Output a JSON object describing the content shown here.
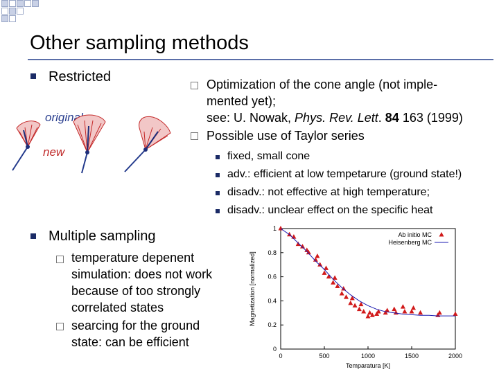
{
  "slide": {
    "title": "Other sampling methods",
    "restricted": {
      "label": "Restricted",
      "figure_labels": {
        "original": "original",
        "new": "new"
      },
      "items": [
        {
          "line1": "Optimization of the cone angle (not imple-",
          "line2": "mented yet);",
          "ref_prefix": "see: U. Nowak, ",
          "ref_journal": "Phys. Rev. Lett",
          "ref_dot": ". ",
          "ref_volume": "84",
          "ref_rest": " 163 (1999)"
        },
        {
          "text": "Possible use of Taylor series"
        }
      ],
      "subitems": [
        "fixed, small cone",
        "adv.: efficient at low tempetarure (ground state!)",
        "disadv.: not effective at high temperature;",
        "disadv.: unclear effect on the specific heat"
      ]
    },
    "multiple": {
      "label": "Multiple sampling",
      "items": [
        {
          "lines": [
            "temperature depenent",
            "simulation: does not work",
            "because of too strongly",
            "correlated states"
          ]
        },
        {
          "lines": [
            "searcing for the ground",
            "state: can be efficient"
          ]
        }
      ]
    }
  },
  "chart_data": {
    "type": "scatter",
    "xlabel": "Temparatura [K]",
    "ylabel": "Magnetization [normalized]",
    "xlim": [
      0,
      2000
    ],
    "ylim": [
      0,
      1
    ],
    "xticks": [
      "0",
      "500",
      "1000",
      "1500",
      "2000"
    ],
    "yticks": [
      "0",
      "0.2",
      "0.4",
      "0.6",
      "0.8",
      "1"
    ],
    "legend_position": "top-right",
    "series": [
      {
        "name": "Ab initio MC",
        "kind": "markers",
        "color": "#d11a1a",
        "x": [
          0,
          100,
          150,
          200,
          250,
          300,
          320,
          400,
          420,
          450,
          500,
          520,
          550,
          600,
          620,
          650,
          700,
          720,
          750,
          800,
          820,
          850,
          900,
          920,
          950,
          1000,
          1020,
          1050,
          1100,
          1120,
          1200,
          1220,
          1300,
          1320,
          1400,
          1420,
          1500,
          1520,
          1600,
          1800,
          1820,
          2000
        ],
        "y": [
          1.0,
          0.95,
          0.93,
          0.87,
          0.85,
          0.82,
          0.8,
          0.74,
          0.77,
          0.7,
          0.63,
          0.67,
          0.6,
          0.55,
          0.59,
          0.52,
          0.46,
          0.5,
          0.43,
          0.38,
          0.42,
          0.36,
          0.33,
          0.37,
          0.31,
          0.27,
          0.3,
          0.28,
          0.29,
          0.31,
          0.3,
          0.32,
          0.33,
          0.3,
          0.35,
          0.31,
          0.31,
          0.34,
          0.3,
          0.28,
          0.3,
          0.29
        ]
      },
      {
        "name": "Heisenberg MC",
        "kind": "line",
        "color": "#1a1ab0",
        "x": [
          0,
          100,
          200,
          300,
          400,
          500,
          600,
          700,
          800,
          900,
          1000,
          1100,
          1200,
          1300,
          1400,
          1500,
          1600,
          1700,
          1800,
          1900,
          2000
        ],
        "y": [
          1.0,
          0.95,
          0.88,
          0.81,
          0.73,
          0.66,
          0.58,
          0.51,
          0.45,
          0.4,
          0.36,
          0.33,
          0.31,
          0.3,
          0.29,
          0.285,
          0.28,
          0.28,
          0.275,
          0.275,
          0.275
        ]
      }
    ]
  }
}
